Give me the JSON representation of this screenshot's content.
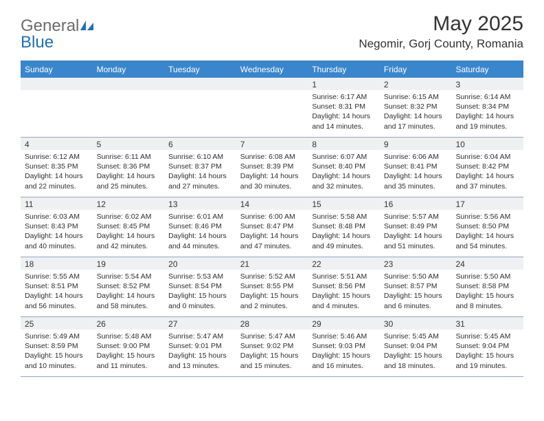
{
  "logo": {
    "text1": "General",
    "text2": "Blue"
  },
  "title": "May 2025",
  "location": "Negomir, Gorj County, Romania",
  "day_headers": [
    "Sunday",
    "Monday",
    "Tuesday",
    "Wednesday",
    "Thursday",
    "Friday",
    "Saturday"
  ],
  "colors": {
    "header_bg": "#3a86cc",
    "header_text": "#ffffff",
    "daynum_bg": "#eff0f1",
    "border": "#8fa7bf",
    "top_border": "#2f7bc4",
    "logo_gray": "#6b6b6b",
    "logo_blue": "#1f6fb2"
  },
  "weeks": [
    [
      {
        "num": "",
        "sunrise": "",
        "sunset": "",
        "daylight": ""
      },
      {
        "num": "",
        "sunrise": "",
        "sunset": "",
        "daylight": ""
      },
      {
        "num": "",
        "sunrise": "",
        "sunset": "",
        "daylight": ""
      },
      {
        "num": "",
        "sunrise": "",
        "sunset": "",
        "daylight": ""
      },
      {
        "num": "1",
        "sunrise": "Sunrise: 6:17 AM",
        "sunset": "Sunset: 8:31 PM",
        "daylight": "Daylight: 14 hours and 14 minutes."
      },
      {
        "num": "2",
        "sunrise": "Sunrise: 6:15 AM",
        "sunset": "Sunset: 8:32 PM",
        "daylight": "Daylight: 14 hours and 17 minutes."
      },
      {
        "num": "3",
        "sunrise": "Sunrise: 6:14 AM",
        "sunset": "Sunset: 8:34 PM",
        "daylight": "Daylight: 14 hours and 19 minutes."
      }
    ],
    [
      {
        "num": "4",
        "sunrise": "Sunrise: 6:12 AM",
        "sunset": "Sunset: 8:35 PM",
        "daylight": "Daylight: 14 hours and 22 minutes."
      },
      {
        "num": "5",
        "sunrise": "Sunrise: 6:11 AM",
        "sunset": "Sunset: 8:36 PM",
        "daylight": "Daylight: 14 hours and 25 minutes."
      },
      {
        "num": "6",
        "sunrise": "Sunrise: 6:10 AM",
        "sunset": "Sunset: 8:37 PM",
        "daylight": "Daylight: 14 hours and 27 minutes."
      },
      {
        "num": "7",
        "sunrise": "Sunrise: 6:08 AM",
        "sunset": "Sunset: 8:39 PM",
        "daylight": "Daylight: 14 hours and 30 minutes."
      },
      {
        "num": "8",
        "sunrise": "Sunrise: 6:07 AM",
        "sunset": "Sunset: 8:40 PM",
        "daylight": "Daylight: 14 hours and 32 minutes."
      },
      {
        "num": "9",
        "sunrise": "Sunrise: 6:06 AM",
        "sunset": "Sunset: 8:41 PM",
        "daylight": "Daylight: 14 hours and 35 minutes."
      },
      {
        "num": "10",
        "sunrise": "Sunrise: 6:04 AM",
        "sunset": "Sunset: 8:42 PM",
        "daylight": "Daylight: 14 hours and 37 minutes."
      }
    ],
    [
      {
        "num": "11",
        "sunrise": "Sunrise: 6:03 AM",
        "sunset": "Sunset: 8:43 PM",
        "daylight": "Daylight: 14 hours and 40 minutes."
      },
      {
        "num": "12",
        "sunrise": "Sunrise: 6:02 AM",
        "sunset": "Sunset: 8:45 PM",
        "daylight": "Daylight: 14 hours and 42 minutes."
      },
      {
        "num": "13",
        "sunrise": "Sunrise: 6:01 AM",
        "sunset": "Sunset: 8:46 PM",
        "daylight": "Daylight: 14 hours and 44 minutes."
      },
      {
        "num": "14",
        "sunrise": "Sunrise: 6:00 AM",
        "sunset": "Sunset: 8:47 PM",
        "daylight": "Daylight: 14 hours and 47 minutes."
      },
      {
        "num": "15",
        "sunrise": "Sunrise: 5:58 AM",
        "sunset": "Sunset: 8:48 PM",
        "daylight": "Daylight: 14 hours and 49 minutes."
      },
      {
        "num": "16",
        "sunrise": "Sunrise: 5:57 AM",
        "sunset": "Sunset: 8:49 PM",
        "daylight": "Daylight: 14 hours and 51 minutes."
      },
      {
        "num": "17",
        "sunrise": "Sunrise: 5:56 AM",
        "sunset": "Sunset: 8:50 PM",
        "daylight": "Daylight: 14 hours and 54 minutes."
      }
    ],
    [
      {
        "num": "18",
        "sunrise": "Sunrise: 5:55 AM",
        "sunset": "Sunset: 8:51 PM",
        "daylight": "Daylight: 14 hours and 56 minutes."
      },
      {
        "num": "19",
        "sunrise": "Sunrise: 5:54 AM",
        "sunset": "Sunset: 8:52 PM",
        "daylight": "Daylight: 14 hours and 58 minutes."
      },
      {
        "num": "20",
        "sunrise": "Sunrise: 5:53 AM",
        "sunset": "Sunset: 8:54 PM",
        "daylight": "Daylight: 15 hours and 0 minutes."
      },
      {
        "num": "21",
        "sunrise": "Sunrise: 5:52 AM",
        "sunset": "Sunset: 8:55 PM",
        "daylight": "Daylight: 15 hours and 2 minutes."
      },
      {
        "num": "22",
        "sunrise": "Sunrise: 5:51 AM",
        "sunset": "Sunset: 8:56 PM",
        "daylight": "Daylight: 15 hours and 4 minutes."
      },
      {
        "num": "23",
        "sunrise": "Sunrise: 5:50 AM",
        "sunset": "Sunset: 8:57 PM",
        "daylight": "Daylight: 15 hours and 6 minutes."
      },
      {
        "num": "24",
        "sunrise": "Sunrise: 5:50 AM",
        "sunset": "Sunset: 8:58 PM",
        "daylight": "Daylight: 15 hours and 8 minutes."
      }
    ],
    [
      {
        "num": "25",
        "sunrise": "Sunrise: 5:49 AM",
        "sunset": "Sunset: 8:59 PM",
        "daylight": "Daylight: 15 hours and 10 minutes."
      },
      {
        "num": "26",
        "sunrise": "Sunrise: 5:48 AM",
        "sunset": "Sunset: 9:00 PM",
        "daylight": "Daylight: 15 hours and 11 minutes."
      },
      {
        "num": "27",
        "sunrise": "Sunrise: 5:47 AM",
        "sunset": "Sunset: 9:01 PM",
        "daylight": "Daylight: 15 hours and 13 minutes."
      },
      {
        "num": "28",
        "sunrise": "Sunrise: 5:47 AM",
        "sunset": "Sunset: 9:02 PM",
        "daylight": "Daylight: 15 hours and 15 minutes."
      },
      {
        "num": "29",
        "sunrise": "Sunrise: 5:46 AM",
        "sunset": "Sunset: 9:03 PM",
        "daylight": "Daylight: 15 hours and 16 minutes."
      },
      {
        "num": "30",
        "sunrise": "Sunrise: 5:45 AM",
        "sunset": "Sunset: 9:04 PM",
        "daylight": "Daylight: 15 hours and 18 minutes."
      },
      {
        "num": "31",
        "sunrise": "Sunrise: 5:45 AM",
        "sunset": "Sunset: 9:04 PM",
        "daylight": "Daylight: 15 hours and 19 minutes."
      }
    ]
  ]
}
